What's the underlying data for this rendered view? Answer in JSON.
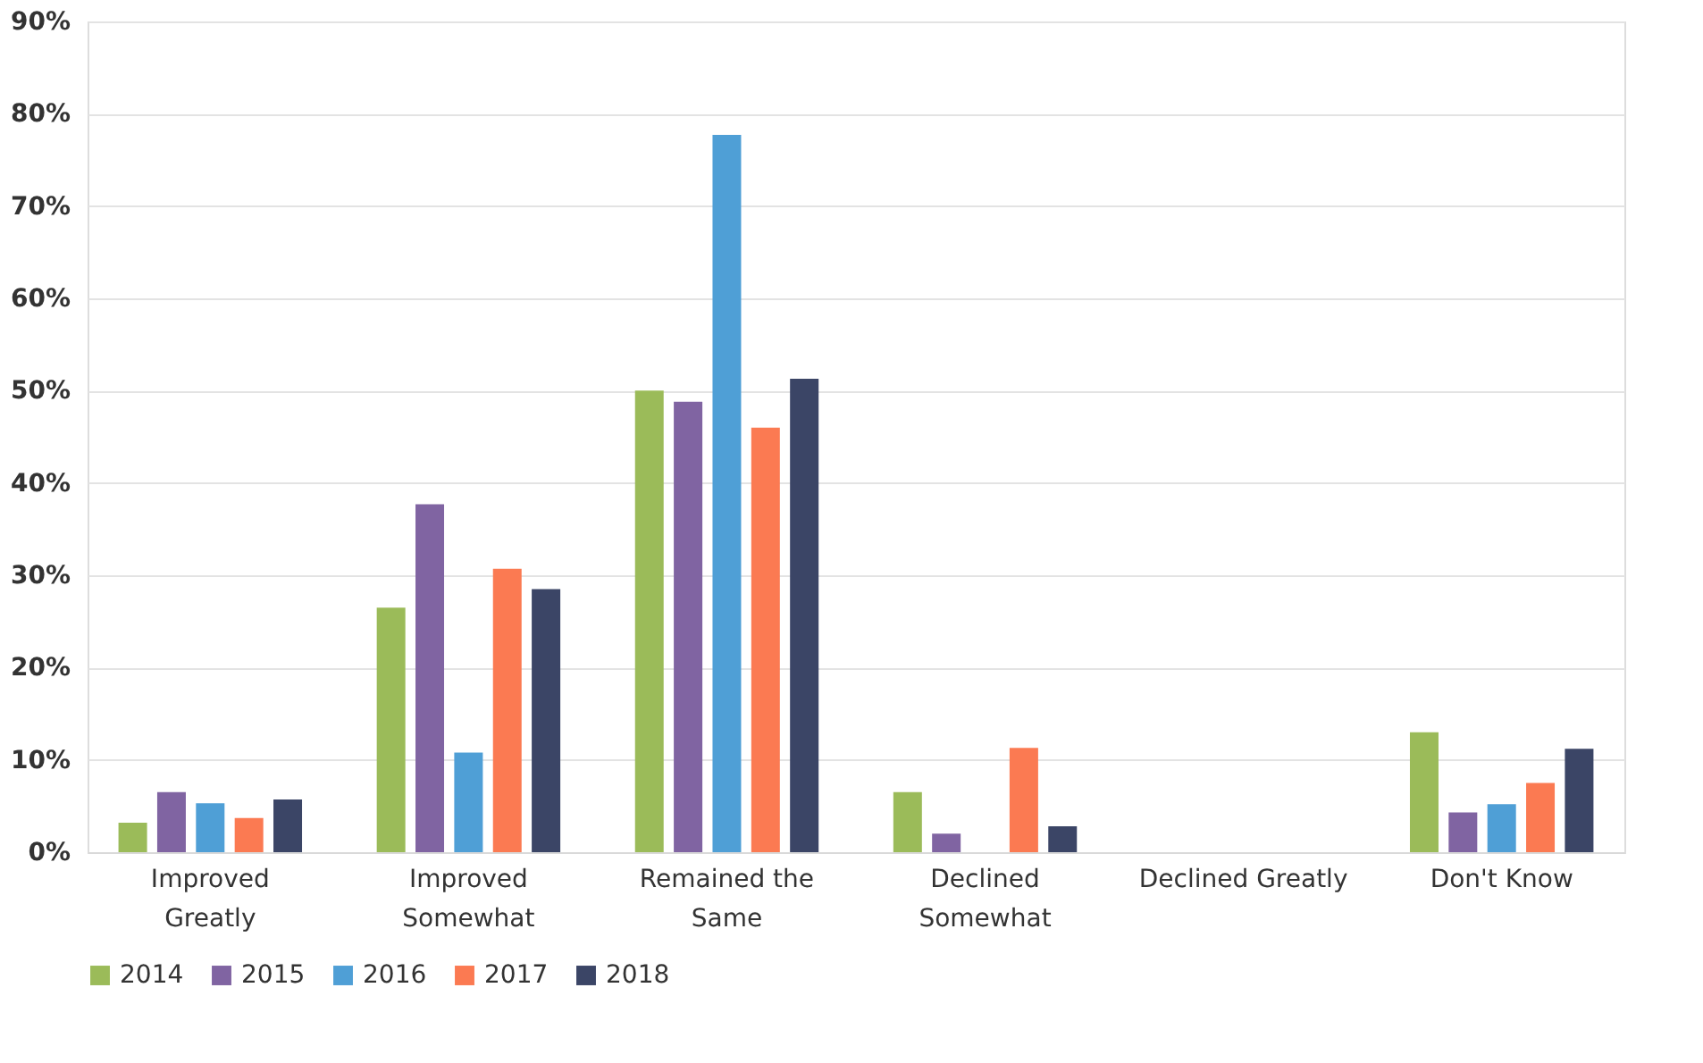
{
  "chart_data": {
    "type": "bar",
    "categories": [
      "Improved\nGreatly",
      "Improved\nSomewhat",
      "Remained the\nSame",
      "Declined\nSomewhat",
      "Declined Greatly",
      "Don't Know"
    ],
    "series": [
      {
        "name": "2014",
        "color": "#9bbb59",
        "values": [
          3.2,
          26.5,
          50,
          6.5,
          0,
          13
        ]
      },
      {
        "name": "2015",
        "color": "#8064a2",
        "values": [
          6.5,
          37.7,
          48.8,
          2,
          0,
          4.3
        ]
      },
      {
        "name": "2016",
        "color": "#4f9fd6",
        "values": [
          5.3,
          10.8,
          77.7,
          0,
          0,
          5.2
        ]
      },
      {
        "name": "2017",
        "color": "#fb7a52",
        "values": [
          3.7,
          30.7,
          46,
          11.3,
          0,
          7.5
        ]
      },
      {
        "name": "2018",
        "color": "#3b4566",
        "values": [
          5.7,
          28.5,
          51.3,
          2.8,
          0,
          11.2
        ]
      }
    ],
    "ylim": [
      0,
      90
    ],
    "yticks": [
      {
        "value": 0,
        "label": "0%"
      },
      {
        "value": 10,
        "label": "10%"
      },
      {
        "value": 20,
        "label": "20%"
      },
      {
        "value": 30,
        "label": "30%"
      },
      {
        "value": 40,
        "label": "40%"
      },
      {
        "value": 50,
        "label": "50%"
      },
      {
        "value": 60,
        "label": "60%"
      },
      {
        "value": 70,
        "label": "70%"
      },
      {
        "value": 80,
        "label": "80%"
      },
      {
        "value": 90,
        "label": "90%"
      }
    ],
    "grid": "y",
    "legend": "bottom"
  }
}
